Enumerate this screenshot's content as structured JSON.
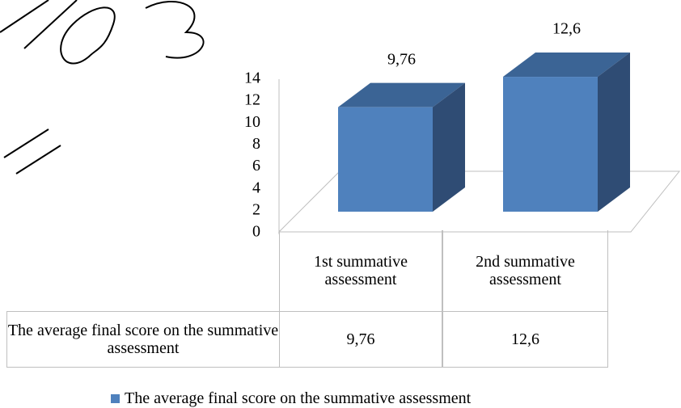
{
  "chart_data": {
    "type": "bar3d",
    "categories": [
      "1st summative assessment",
      "2nd summative assessment"
    ],
    "series": [
      {
        "name": "The average final score on the summative assessment",
        "color": "#4f81bd",
        "values": [
          9.76,
          12.6
        ],
        "value_labels": [
          "9,76",
          "12,6"
        ]
      }
    ],
    "ylim": [
      0,
      14
    ],
    "yticks": [
      0,
      2,
      4,
      6,
      8,
      10,
      12,
      14
    ],
    "data_table": true,
    "legend": "bottom"
  }
}
